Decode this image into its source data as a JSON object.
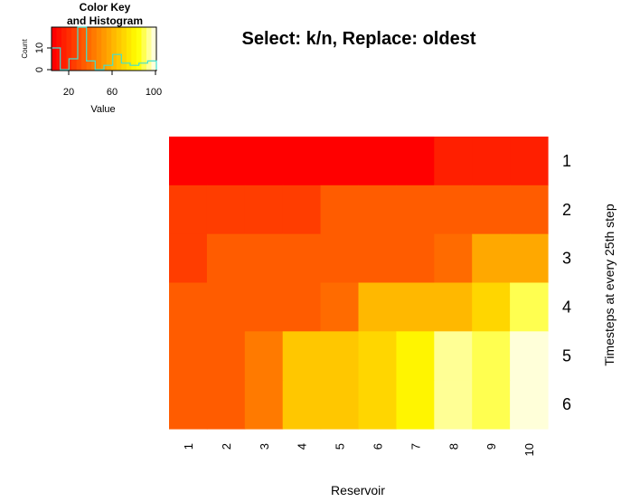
{
  "chart_data": {
    "type": "heatmap",
    "title": "Select: k/n, Replace: oldest",
    "xlabel": "Reservoir",
    "ylabel": "Timesteps at every 25th step",
    "x_categories": [
      "1",
      "2",
      "3",
      "4",
      "5",
      "6",
      "7",
      "8",
      "9",
      "10"
    ],
    "y_categories": [
      "1",
      "2",
      "3",
      "4",
      "5",
      "6"
    ],
    "values": [
      [
        2,
        2,
        2,
        2,
        2,
        2,
        2,
        8,
        8,
        8
      ],
      [
        22,
        22,
        22,
        22,
        28,
        28,
        28,
        28,
        28,
        28
      ],
      [
        22,
        28,
        28,
        28,
        28,
        28,
        28,
        35,
        55,
        55
      ],
      [
        30,
        30,
        30,
        30,
        35,
        62,
        62,
        62,
        70,
        90
      ],
      [
        32,
        32,
        38,
        65,
        65,
        70,
        80,
        95,
        90,
        100
      ],
      [
        32,
        32,
        38,
        65,
        65,
        70,
        80,
        95,
        90,
        100
      ]
    ],
    "color_key": {
      "title_line1": "Color Key",
      "title_line2": "and Histogram",
      "xlabel": "Value",
      "ylabel": "Count",
      "x_ticks": [
        "20",
        "60",
        "100"
      ],
      "y_ticks": [
        "0",
        "10"
      ],
      "colors": [
        "#ff0000",
        "#ff0f00",
        "#ff1f00",
        "#ff2e00",
        "#ff3d00",
        "#ff4d00",
        "#ff5c00",
        "#ff6b00",
        "#ff7a00",
        "#ff8a00",
        "#ff9900",
        "#ffa800",
        "#ffb800",
        "#ffc700",
        "#ffd600",
        "#ffe600",
        "#fff500",
        "#ffff0b",
        "#ffff50",
        "#ffff95",
        "#ffffd9"
      ]
    }
  }
}
